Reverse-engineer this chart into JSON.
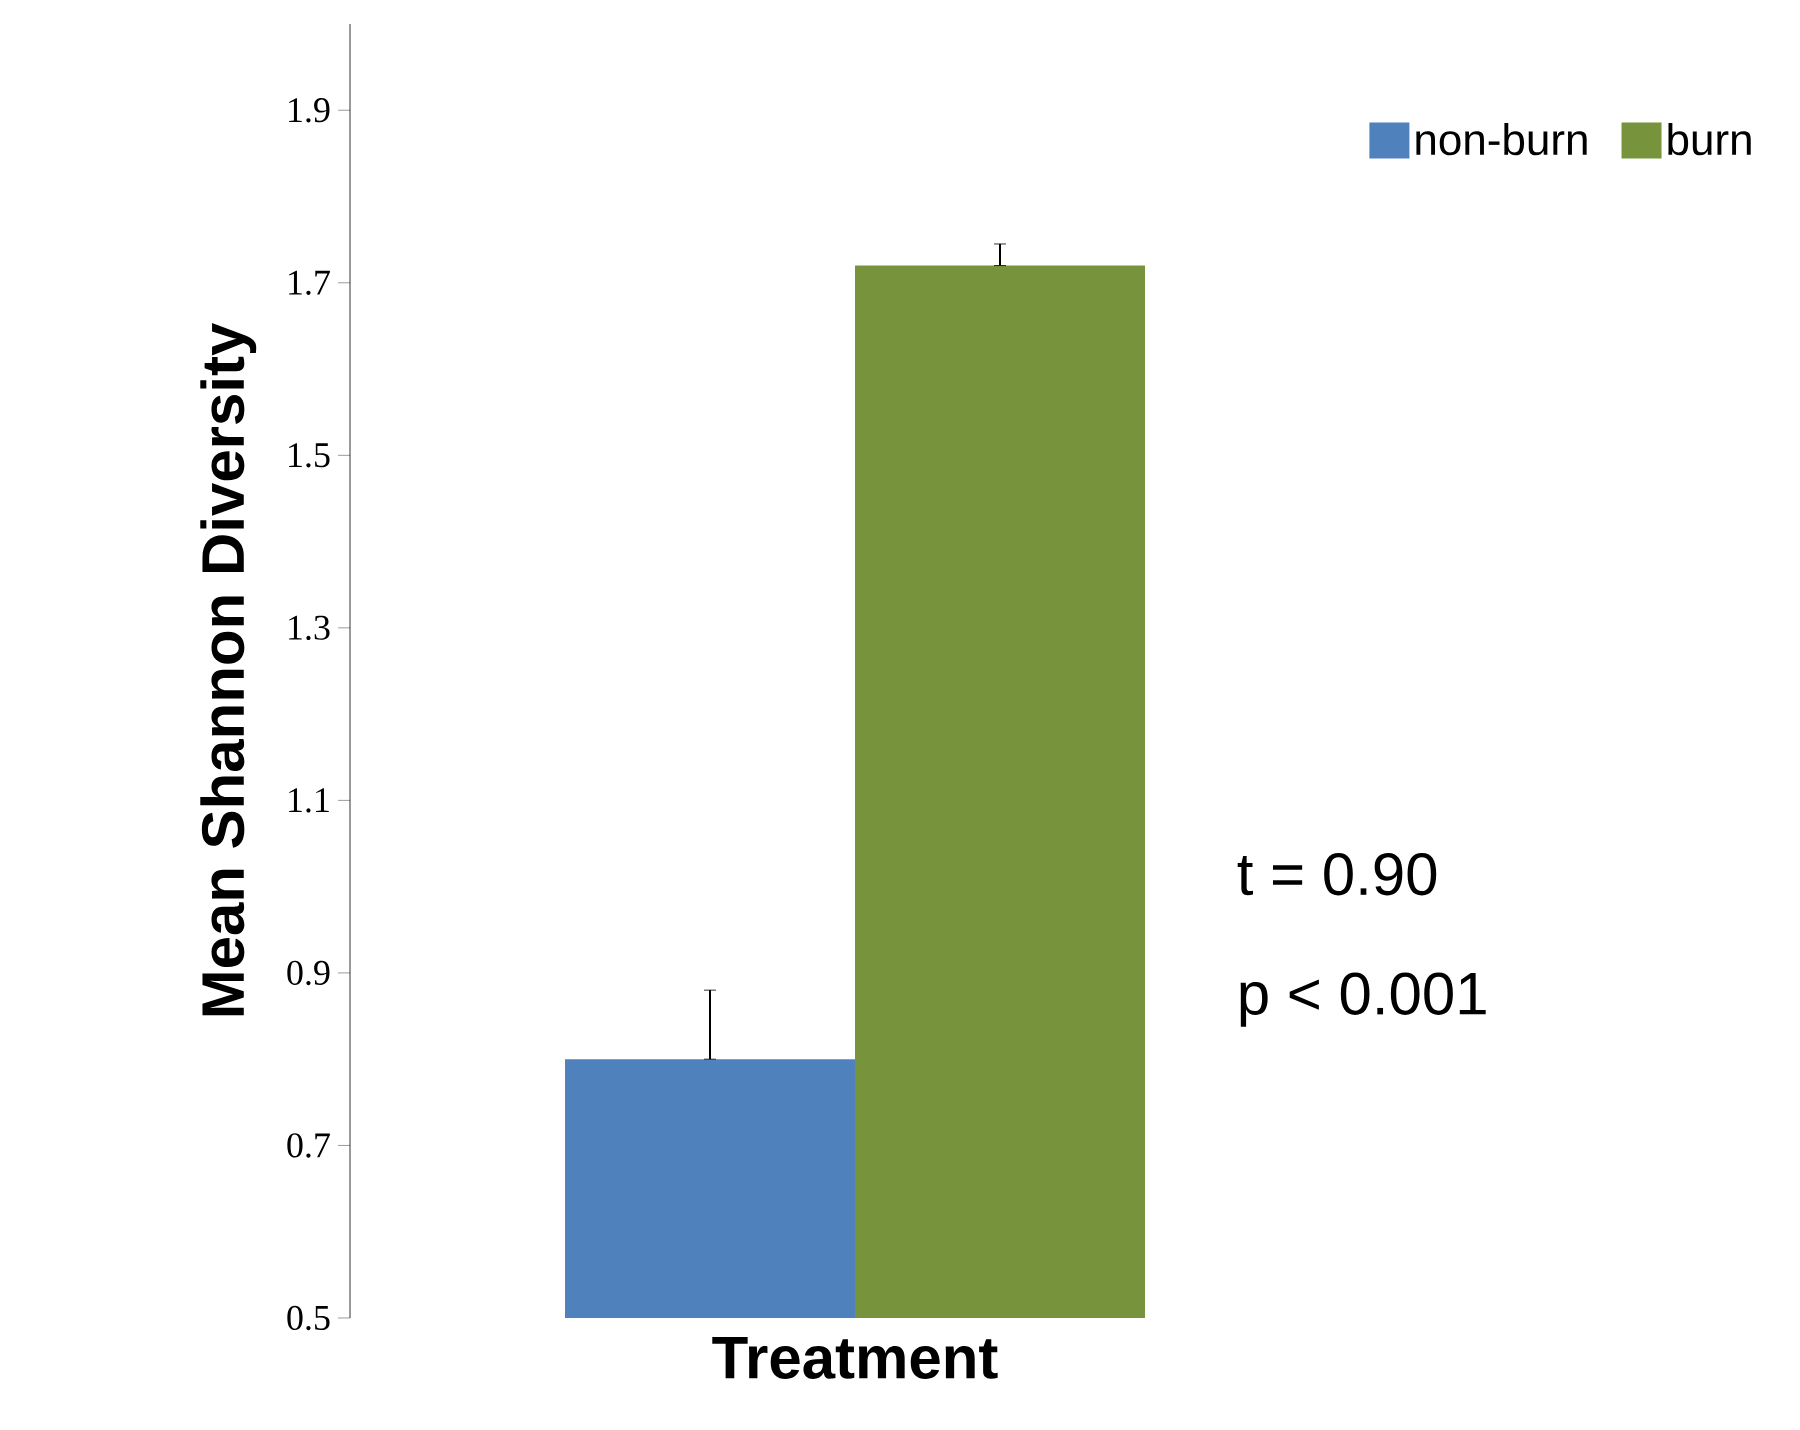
{
  "chart_data": {
    "type": "bar",
    "xlabel": "Treatment",
    "ylabel": "Mean Shannon Diversity",
    "categories": [
      null
    ],
    "series": [
      {
        "name": "non-burn",
        "color": "#4f81bd",
        "values": [
          0.8
        ],
        "errors": [
          [
            0.8,
            0.88
          ]
        ]
      },
      {
        "name": "burn",
        "color": "#77933c",
        "values": [
          1.72
        ],
        "errors": [
          [
            1.72,
            1.745
          ]
        ]
      }
    ],
    "ylim": [
      0.5,
      2.0
    ],
    "yticks": [
      0.5,
      0.7,
      0.9,
      1.1,
      1.3,
      1.5,
      1.7,
      1.9
    ],
    "grid": false,
    "legend": "top right",
    "annotations": [
      "t = 0.90",
      "p < 0.001"
    ]
  }
}
